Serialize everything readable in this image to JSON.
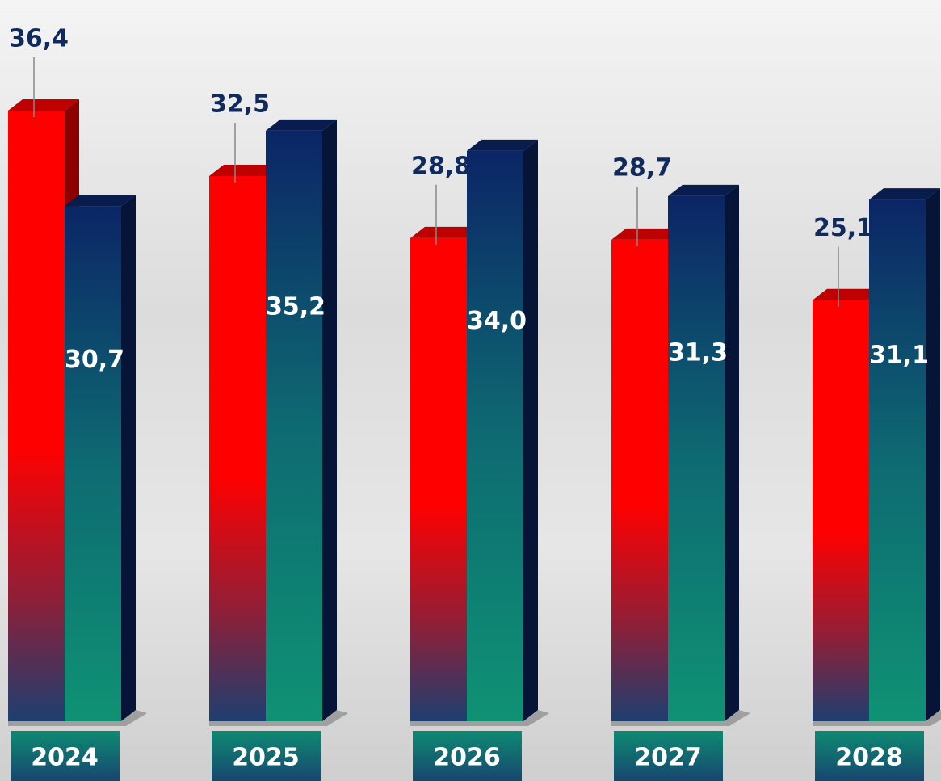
{
  "chart_data": {
    "type": "bar3d",
    "categories": [
      "2024",
      "2025",
      "2026",
      "2027",
      "2028"
    ],
    "series": [
      {
        "color": "#ff0000",
        "values": [
          36.4,
          32.5,
          28.8,
          28.7,
          25.1
        ],
        "value_labels": [
          "36,4",
          "32,5",
          "28,8",
          "28,7",
          "25,1"
        ]
      },
      {
        "color": "#0b2566",
        "values": [
          30.7,
          35.2,
          34.0,
          31.3,
          31.1
        ],
        "value_labels": [
          "30,7",
          "35,2",
          "34,0",
          "31,3",
          "31,1"
        ]
      }
    ]
  }
}
